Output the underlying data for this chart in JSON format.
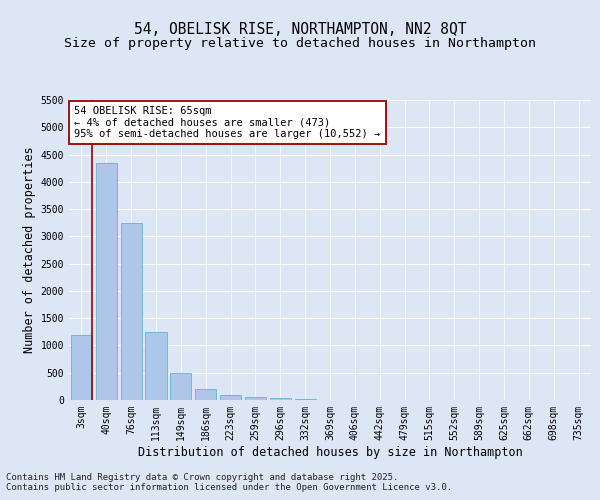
{
  "title_line1": "54, OBELISK RISE, NORTHAMPTON, NN2 8QT",
  "title_line2": "Size of property relative to detached houses in Northampton",
  "xlabel": "Distribution of detached houses by size in Northampton",
  "ylabel": "Number of detached properties",
  "categories": [
    "3sqm",
    "40sqm",
    "76sqm",
    "113sqm",
    "149sqm",
    "186sqm",
    "223sqm",
    "259sqm",
    "296sqm",
    "332sqm",
    "369sqm",
    "406sqm",
    "442sqm",
    "479sqm",
    "515sqm",
    "552sqm",
    "589sqm",
    "625sqm",
    "662sqm",
    "698sqm",
    "735sqm"
  ],
  "values": [
    1200,
    4350,
    3250,
    1250,
    500,
    200,
    100,
    55,
    30,
    10,
    5,
    0,
    0,
    0,
    0,
    0,
    0,
    0,
    0,
    0,
    0
  ],
  "bar_color": "#aec6e8",
  "bar_edge_color": "#6baed6",
  "vline_color": "#9b0000",
  "annotation_text": "54 OBELISK RISE: 65sqm\n← 4% of detached houses are smaller (473)\n95% of semi-detached houses are larger (10,552) →",
  "annotation_box_color": "#ffffff",
  "annotation_box_edge": "#9b0000",
  "ylim_max": 5500,
  "ytick_step": 500,
  "background_color": "#dce6f5",
  "grid_color": "#ffffff",
  "footer_line1": "Contains HM Land Registry data © Crown copyright and database right 2025.",
  "footer_line2": "Contains public sector information licensed under the Open Government Licence v3.0.",
  "title_fontsize": 10.5,
  "subtitle_fontsize": 9.5,
  "axis_label_fontsize": 8.5,
  "tick_fontsize": 7,
  "annotation_fontsize": 7.5,
  "footer_fontsize": 6.5,
  "vline_bar_index": 0,
  "fig_width": 6.0,
  "fig_height": 5.0
}
